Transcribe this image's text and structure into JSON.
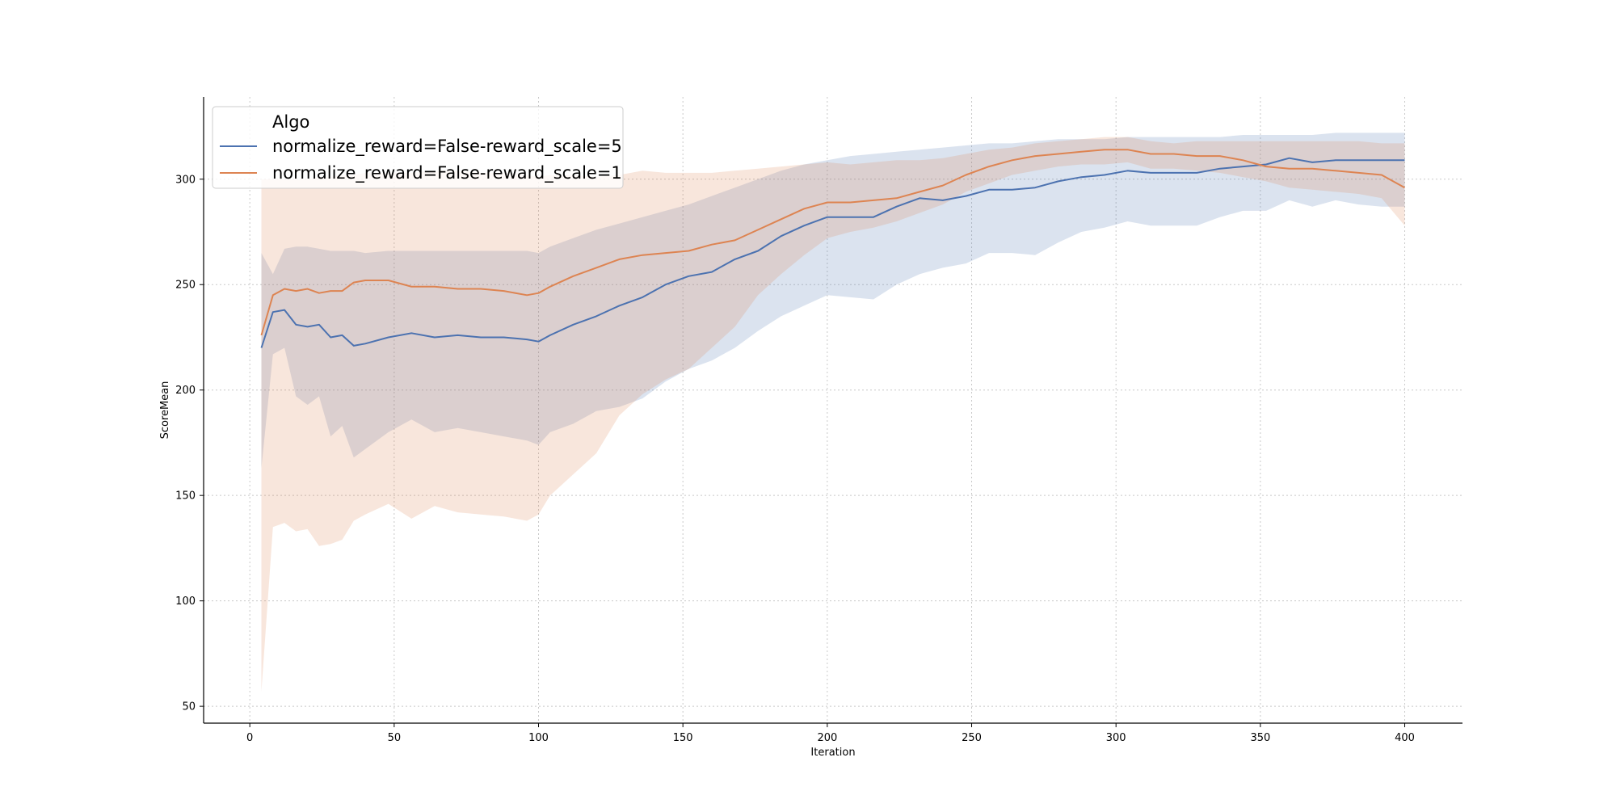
{
  "chart_data": {
    "type": "line",
    "title": "",
    "xlabel": "Iteration",
    "ylabel": "ScoreMean",
    "xlim": [
      -16,
      420
    ],
    "ylim": [
      42,
      339
    ],
    "x_ticks": [
      0,
      50,
      100,
      150,
      200,
      250,
      300,
      350,
      400
    ],
    "y_ticks": [
      50,
      100,
      150,
      200,
      250,
      300
    ],
    "grid": true,
    "legend": {
      "title": "Algo",
      "placement": "top-left"
    },
    "series": [
      {
        "name": "normalize_reward=False-reward_scale=5",
        "color": "#4c72b0",
        "x": [
          4,
          8,
          12,
          16,
          20,
          24,
          28,
          32,
          36,
          40,
          48,
          56,
          64,
          72,
          80,
          88,
          96,
          100,
          104,
          112,
          120,
          128,
          136,
          144,
          152,
          160,
          168,
          176,
          184,
          192,
          200,
          208,
          216,
          224,
          232,
          240,
          248,
          256,
          264,
          272,
          280,
          288,
          296,
          304,
          312,
          320,
          328,
          336,
          344,
          352,
          360,
          368,
          376,
          384,
          392,
          400
        ],
        "mean": [
          220,
          237,
          238,
          231,
          230,
          231,
          225,
          226,
          221,
          222,
          225,
          227,
          225,
          226,
          225,
          225,
          224,
          223,
          226,
          231,
          235,
          240,
          244,
          250,
          254,
          256,
          262,
          266,
          273,
          278,
          282,
          282,
          282,
          287,
          291,
          290,
          292,
          295,
          295,
          296,
          299,
          301,
          302,
          304,
          303,
          303,
          303,
          305,
          306,
          307,
          310,
          308,
          309,
          309,
          309,
          309
        ],
        "lower": [
          163,
          217,
          220,
          197,
          193,
          197,
          178,
          183,
          168,
          172,
          180,
          186,
          180,
          182,
          180,
          178,
          176,
          174,
          180,
          184,
          190,
          192,
          196,
          204,
          210,
          214,
          220,
          228,
          235,
          240,
          245,
          244,
          243,
          250,
          255,
          258,
          260,
          265,
          265,
          264,
          270,
          275,
          277,
          280,
          278,
          278,
          278,
          282,
          285,
          285,
          290,
          287,
          290,
          288,
          287,
          287
        ],
        "upper": [
          265,
          255,
          267,
          268,
          268,
          267,
          266,
          266,
          266,
          265,
          266,
          266,
          266,
          266,
          266,
          266,
          266,
          265,
          268,
          272,
          276,
          279,
          282,
          285,
          288,
          292,
          296,
          300,
          304,
          307,
          309,
          311,
          312,
          313,
          314,
          315,
          316,
          317,
          317,
          318,
          319,
          319,
          319,
          320,
          320,
          320,
          320,
          320,
          321,
          321,
          321,
          321,
          322,
          322,
          322,
          322
        ]
      },
      {
        "name": "normalize_reward=False-reward_scale=1",
        "color": "#dd8452",
        "x": [
          4,
          8,
          12,
          16,
          20,
          24,
          28,
          32,
          36,
          40,
          48,
          56,
          64,
          72,
          80,
          88,
          96,
          100,
          104,
          112,
          120,
          128,
          136,
          144,
          152,
          160,
          168,
          176,
          184,
          192,
          200,
          208,
          216,
          224,
          232,
          240,
          248,
          256,
          264,
          272,
          280,
          288,
          296,
          304,
          312,
          320,
          328,
          336,
          344,
          352,
          360,
          368,
          376,
          384,
          392,
          400
        ],
        "mean": [
          226,
          245,
          248,
          247,
          248,
          246,
          247,
          247,
          251,
          252,
          252,
          249,
          249,
          248,
          248,
          247,
          245,
          246,
          249,
          254,
          258,
          262,
          264,
          265,
          266,
          269,
          271,
          276,
          281,
          286,
          289,
          289,
          290,
          291,
          294,
          297,
          302,
          306,
          309,
          311,
          312,
          313,
          314,
          314,
          312,
          312,
          311,
          311,
          309,
          306,
          305,
          305,
          304,
          303,
          302,
          296
        ],
        "lower": [
          57,
          135,
          137,
          133,
          134,
          126,
          127,
          129,
          138,
          141,
          146,
          139,
          145,
          142,
          141,
          140,
          138,
          141,
          150,
          160,
          170,
          188,
          198,
          205,
          210,
          220,
          230,
          245,
          255,
          264,
          272,
          275,
          277,
          280,
          284,
          288,
          294,
          298,
          302,
          304,
          306,
          307,
          307,
          308,
          305,
          305,
          304,
          303,
          301,
          299,
          296,
          295,
          294,
          293,
          291,
          278
        ],
        "upper": [
          300,
          300,
          300,
          300,
          300,
          301,
          301,
          302,
          302,
          303,
          303,
          303,
          304,
          304,
          303,
          303,
          302,
          301,
          302,
          302,
          301,
          302,
          304,
          303,
          303,
          303,
          304,
          305,
          306,
          307,
          308,
          307,
          308,
          309,
          309,
          310,
          312,
          314,
          315,
          317,
          318,
          319,
          320,
          320,
          318,
          317,
          318,
          318,
          318,
          318,
          318,
          318,
          318,
          318,
          317,
          317
        ]
      }
    ]
  }
}
